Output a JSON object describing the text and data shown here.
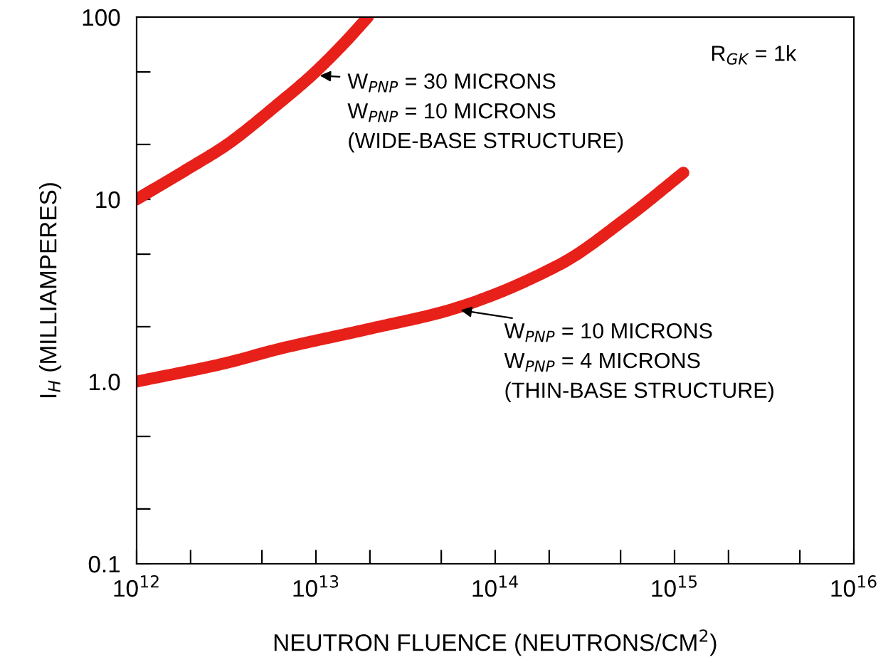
{
  "chart_data": {
    "type": "line",
    "xlabel": "NEUTRON FLUENCE (NEUTRONS/CM$^{2}$)",
    "ylabel": "I$_{H}$ (MILLIAMPERES)",
    "log": "xy",
    "grid": false,
    "marker": "none",
    "line_style": "solid",
    "xlim": [
      1000000000000.0,
      1e+16
    ],
    "ylim": [
      0.1,
      100
    ],
    "xticks": [
      {
        "value": 1000000000000.0,
        "label": "10$^{12}$"
      },
      {
        "value": 2000000000000.0,
        "label": null
      },
      {
        "value": 5000000000000.0,
        "label": null
      },
      {
        "value": 10000000000000.0,
        "label": "10$^{13}$"
      },
      {
        "value": 20000000000000.0,
        "label": null
      },
      {
        "value": 50000000000000.0,
        "label": null
      },
      {
        "value": 100000000000000.0,
        "label": "10$^{14}$"
      },
      {
        "value": 200000000000000.0,
        "label": null
      },
      {
        "value": 500000000000000.0,
        "label": null
      },
      {
        "value": 1000000000000000.0,
        "label": "10$^{15}$"
      },
      {
        "value": 2000000000000000.0,
        "label": null
      },
      {
        "value": 5000000000000000.0,
        "label": null
      },
      {
        "value": 1e+16,
        "label": "10$^{16}$"
      }
    ],
    "yticks": [
      0.1,
      {
        "value": 0.2,
        "label": null
      },
      {
        "value": 0.5,
        "label": null
      },
      {
        "value": 1,
        "label": "1.0"
      },
      {
        "value": 2,
        "label": null
      },
      {
        "value": 5,
        "label": null
      },
      10,
      {
        "value": 20,
        "label": null
      },
      {
        "value": 50,
        "label": null
      },
      100
    ],
    "series": [
      {
        "color": "#e8201a",
        "x": [
          1000000000000.0,
          2000000000000.0,
          3200000000000.0,
          6300000000000.0,
          9500000000000.0,
          14000000000000.0,
          19500000000000.0
        ],
        "values": [
          10,
          15,
          20,
          34,
          48,
          70,
          100
        ]
      },
      {
        "color": "#e8201a",
        "x": [
          1000000000000.0,
          3000000000000.0,
          6400000000000.0,
          20000000000000.0,
          58000000000000.0,
          230000000000000.0,
          550000000000000.0,
          1120000000000000.0
        ],
        "values": [
          1.0,
          1.25,
          1.52,
          1.95,
          2.5,
          4.4,
          8,
          14
        ]
      }
    ],
    "annotations": [
      {
        "text": "W$_{PNP}$ = 30 MICRONS",
        "x": 9500000000000.0,
        "y": 48
      },
      "W$_{PNP}$ = 10 MICRONS",
      "(WIDE-BASE STRUCTURE)",
      {
        "text": "W$_{PNP}$ = 10 MICRONS",
        "x": 58000000000000.0,
        "y": 2.5
      },
      "W$_{PNP}$ = 4 MICRONS",
      "(THIN-BASE STRUCTURE)",
      "R$_{GK}$ = 1k"
    ]
  }
}
